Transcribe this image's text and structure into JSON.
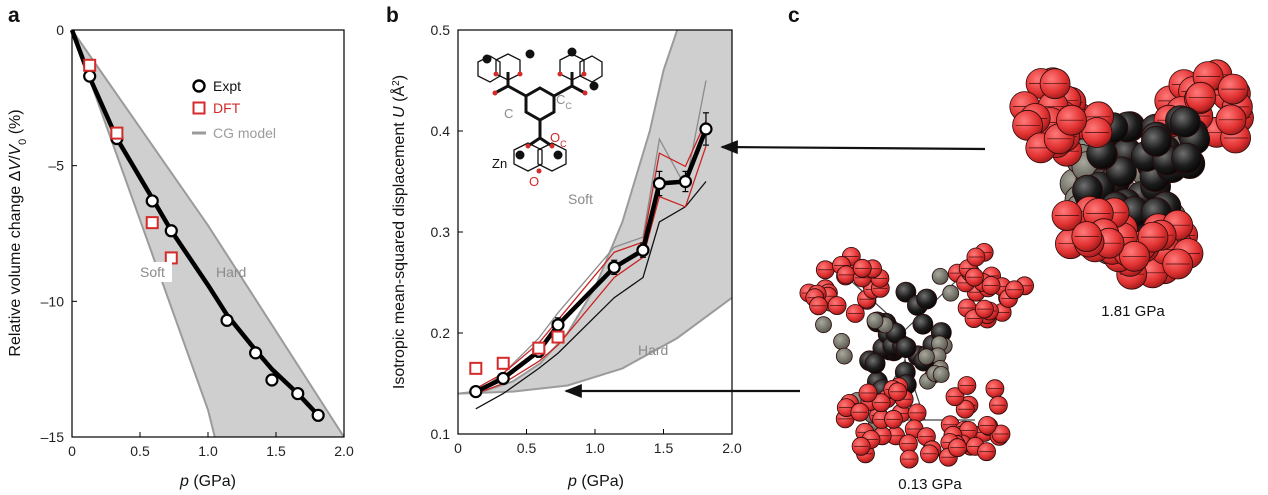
{
  "panels": {
    "a": "a",
    "b": "b",
    "c": "c"
  },
  "colors": {
    "expt": "#000000",
    "dft": "#d42a2a",
    "cg": "#9b9b9b",
    "band": "#cfcfcf",
    "red_atom": "#e23232",
    "grey_atom": "#6e6e64"
  },
  "chart_data": [
    {
      "panel": "a",
      "type": "line",
      "xlabel": "p (GPa)",
      "xlabel_var": "p",
      "xlabel_unit": " (GPa)",
      "ylabel": "Relative volume change ΔV/V0 (%)",
      "ylabel_parts": {
        "pre": "Relative volume change Δ",
        "v1": "V",
        "mid": "/",
        "v2": "V",
        "sub": "0",
        "post": " (%)"
      },
      "xlim": [
        0,
        2.0
      ],
      "ylim": [
        -15,
        0
      ],
      "xticks": [
        0,
        0.5,
        1.0,
        1.5,
        2.0
      ],
      "xtick_labels": [
        "0",
        "0.5",
        "1.0",
        "1.5",
        "2.0"
      ],
      "yticks": [
        0,
        -5,
        -10,
        -15
      ],
      "ytick_labels": [
        "0",
        "–5",
        "–10",
        "–15"
      ],
      "legend": [
        "Expt",
        "DFT",
        "CG model"
      ],
      "annotations": [
        "Soft",
        "Hard"
      ],
      "series": [
        {
          "name": "Expt",
          "marker": "open-circle",
          "x": [
            0.13,
            0.33,
            0.59,
            0.73,
            1.14,
            1.35,
            1.47,
            1.66,
            1.81
          ],
          "y": [
            -1.7,
            -4.0,
            -6.3,
            -7.4,
            -10.7,
            -11.9,
            -12.9,
            -13.4,
            -14.2
          ],
          "err_x": [
            0.02,
            0.02,
            0.02,
            0.02,
            0.02,
            0.02,
            0.02,
            0.02,
            0.02
          ]
        },
        {
          "name": "DFT",
          "marker": "open-square",
          "x": [
            0.13,
            0.33,
            0.59,
            0.73
          ],
          "y": [
            -1.3,
            -3.8,
            -7.1,
            -8.4
          ]
        },
        {
          "name": "Expt fit",
          "style": "thick-line",
          "x": [
            0,
            0.13,
            0.33,
            0.59,
            0.73,
            1.0,
            1.14,
            1.35,
            1.47,
            1.66,
            1.81
          ],
          "y": [
            0,
            -1.75,
            -4.0,
            -6.2,
            -7.4,
            -9.4,
            -10.5,
            -11.8,
            -12.5,
            -13.4,
            -14.2
          ]
        },
        {
          "name": "CG model band soft edge",
          "x": [
            0,
            0.5,
            1.0,
            1.05
          ],
          "y": [
            0,
            -7.0,
            -14.0,
            -15.0
          ]
        },
        {
          "name": "CG model band hard edge",
          "x": [
            0,
            0.5,
            1.0,
            1.5,
            2.0
          ],
          "y": [
            0,
            -3.6,
            -7.2,
            -11.1,
            -15.0
          ]
        }
      ]
    },
    {
      "panel": "b",
      "type": "line",
      "xlabel": "p (GPa)",
      "xlabel_var": "p",
      "xlabel_unit": " (GPa)",
      "ylabel": "Isotropic mean-squared displacement U (Å2)",
      "ylabel_parts": {
        "pre": "Isotropic mean-squared displacement ",
        "v": "U",
        "unit": " (Å",
        "sup": "2",
        "close": ")"
      },
      "xlim": [
        0,
        2.0
      ],
      "ylim": [
        0.1,
        0.5
      ],
      "xticks": [
        0,
        0.5,
        1.0,
        1.5,
        2.0
      ],
      "xtick_labels": [
        "0",
        "0.5",
        "1.0",
        "1.5",
        "2.0"
      ],
      "yticks": [
        0.1,
        0.2,
        0.3,
        0.4,
        0.5
      ],
      "ytick_labels": [
        "0.1",
        "0.2",
        "0.3",
        "0.4",
        "0.5"
      ],
      "annotations": [
        "Soft",
        "Hard"
      ],
      "series": [
        {
          "name": "Expt",
          "marker": "open-circle",
          "x": [
            0.13,
            0.33,
            0.59,
            0.73,
            1.14,
            1.35,
            1.47,
            1.66,
            1.81
          ],
          "y": [
            0.142,
            0.155,
            0.182,
            0.208,
            0.265,
            0.282,
            0.348,
            0.35,
            0.402
          ],
          "err_y": [
            0.004,
            0.004,
            0.006,
            0.007,
            0.007,
            0.007,
            0.012,
            0.01,
            0.016
          ]
        },
        {
          "name": "Expt trend",
          "style": "thick-line",
          "x": [
            0.13,
            0.33,
            0.59,
            0.73,
            1.14,
            1.35,
            1.47,
            1.66,
            1.81
          ],
          "y": [
            0.142,
            0.155,
            0.182,
            0.208,
            0.265,
            0.282,
            0.348,
            0.35,
            0.402
          ]
        },
        {
          "name": "DFT",
          "marker": "open-square",
          "x": [
            0.13,
            0.33,
            0.59,
            0.73
          ],
          "y": [
            0.165,
            0.17,
            0.185,
            0.196
          ]
        },
        {
          "name": "Model red upper",
          "x": [
            0.13,
            0.33,
            0.59,
            0.73,
            1.14,
            1.35,
            1.47,
            1.66,
            1.81
          ],
          "y": [
            0.145,
            0.16,
            0.19,
            0.213,
            0.28,
            0.29,
            0.378,
            0.365,
            0.41
          ]
        },
        {
          "name": "Model red lower",
          "x": [
            0.13,
            0.33,
            0.59,
            0.73,
            1.14,
            1.35,
            1.47,
            1.66,
            1.81
          ],
          "y": [
            0.14,
            0.15,
            0.172,
            0.188,
            0.255,
            0.275,
            0.335,
            0.325,
            0.385
          ]
        },
        {
          "name": "Model grey",
          "x": [
            0.13,
            0.33,
            0.59,
            0.73,
            1.14,
            1.35,
            1.47,
            1.66,
            1.81
          ],
          "y": [
            0.14,
            0.16,
            0.195,
            0.22,
            0.285,
            0.295,
            0.392,
            0.345,
            0.45
          ]
        },
        {
          "name": "Model black thin",
          "x": [
            0.13,
            0.33,
            0.59,
            0.73,
            1.14,
            1.35,
            1.47,
            1.66,
            1.81
          ],
          "y": [
            0.125,
            0.14,
            0.165,
            0.18,
            0.235,
            0.255,
            0.31,
            0.325,
            0.35
          ]
        },
        {
          "name": "CG model band soft edge",
          "x": [
            0,
            0.2,
            0.4,
            0.6,
            0.8,
            1.0,
            1.2,
            1.4,
            1.5,
            1.6
          ],
          "y": [
            0.14,
            0.143,
            0.152,
            0.17,
            0.2,
            0.245,
            0.31,
            0.4,
            0.46,
            0.5
          ]
        },
        {
          "name": "CG model band hard edge",
          "x": [
            0,
            0.4,
            0.8,
            1.2,
            1.6,
            2.0
          ],
          "y": [
            0.14,
            0.142,
            0.148,
            0.165,
            0.195,
            0.235
          ]
        }
      ]
    }
  ],
  "molecule": {
    "labels": {
      "c": "C",
      "cc_main": "C",
      "cc_sub": "C",
      "oc_main": "O",
      "oc_sub": "C",
      "zn": "Zn",
      "o": "O"
    }
  },
  "panel_c": {
    "label_high": "1.81 GPa",
    "label_low": "0.13 GPa"
  }
}
